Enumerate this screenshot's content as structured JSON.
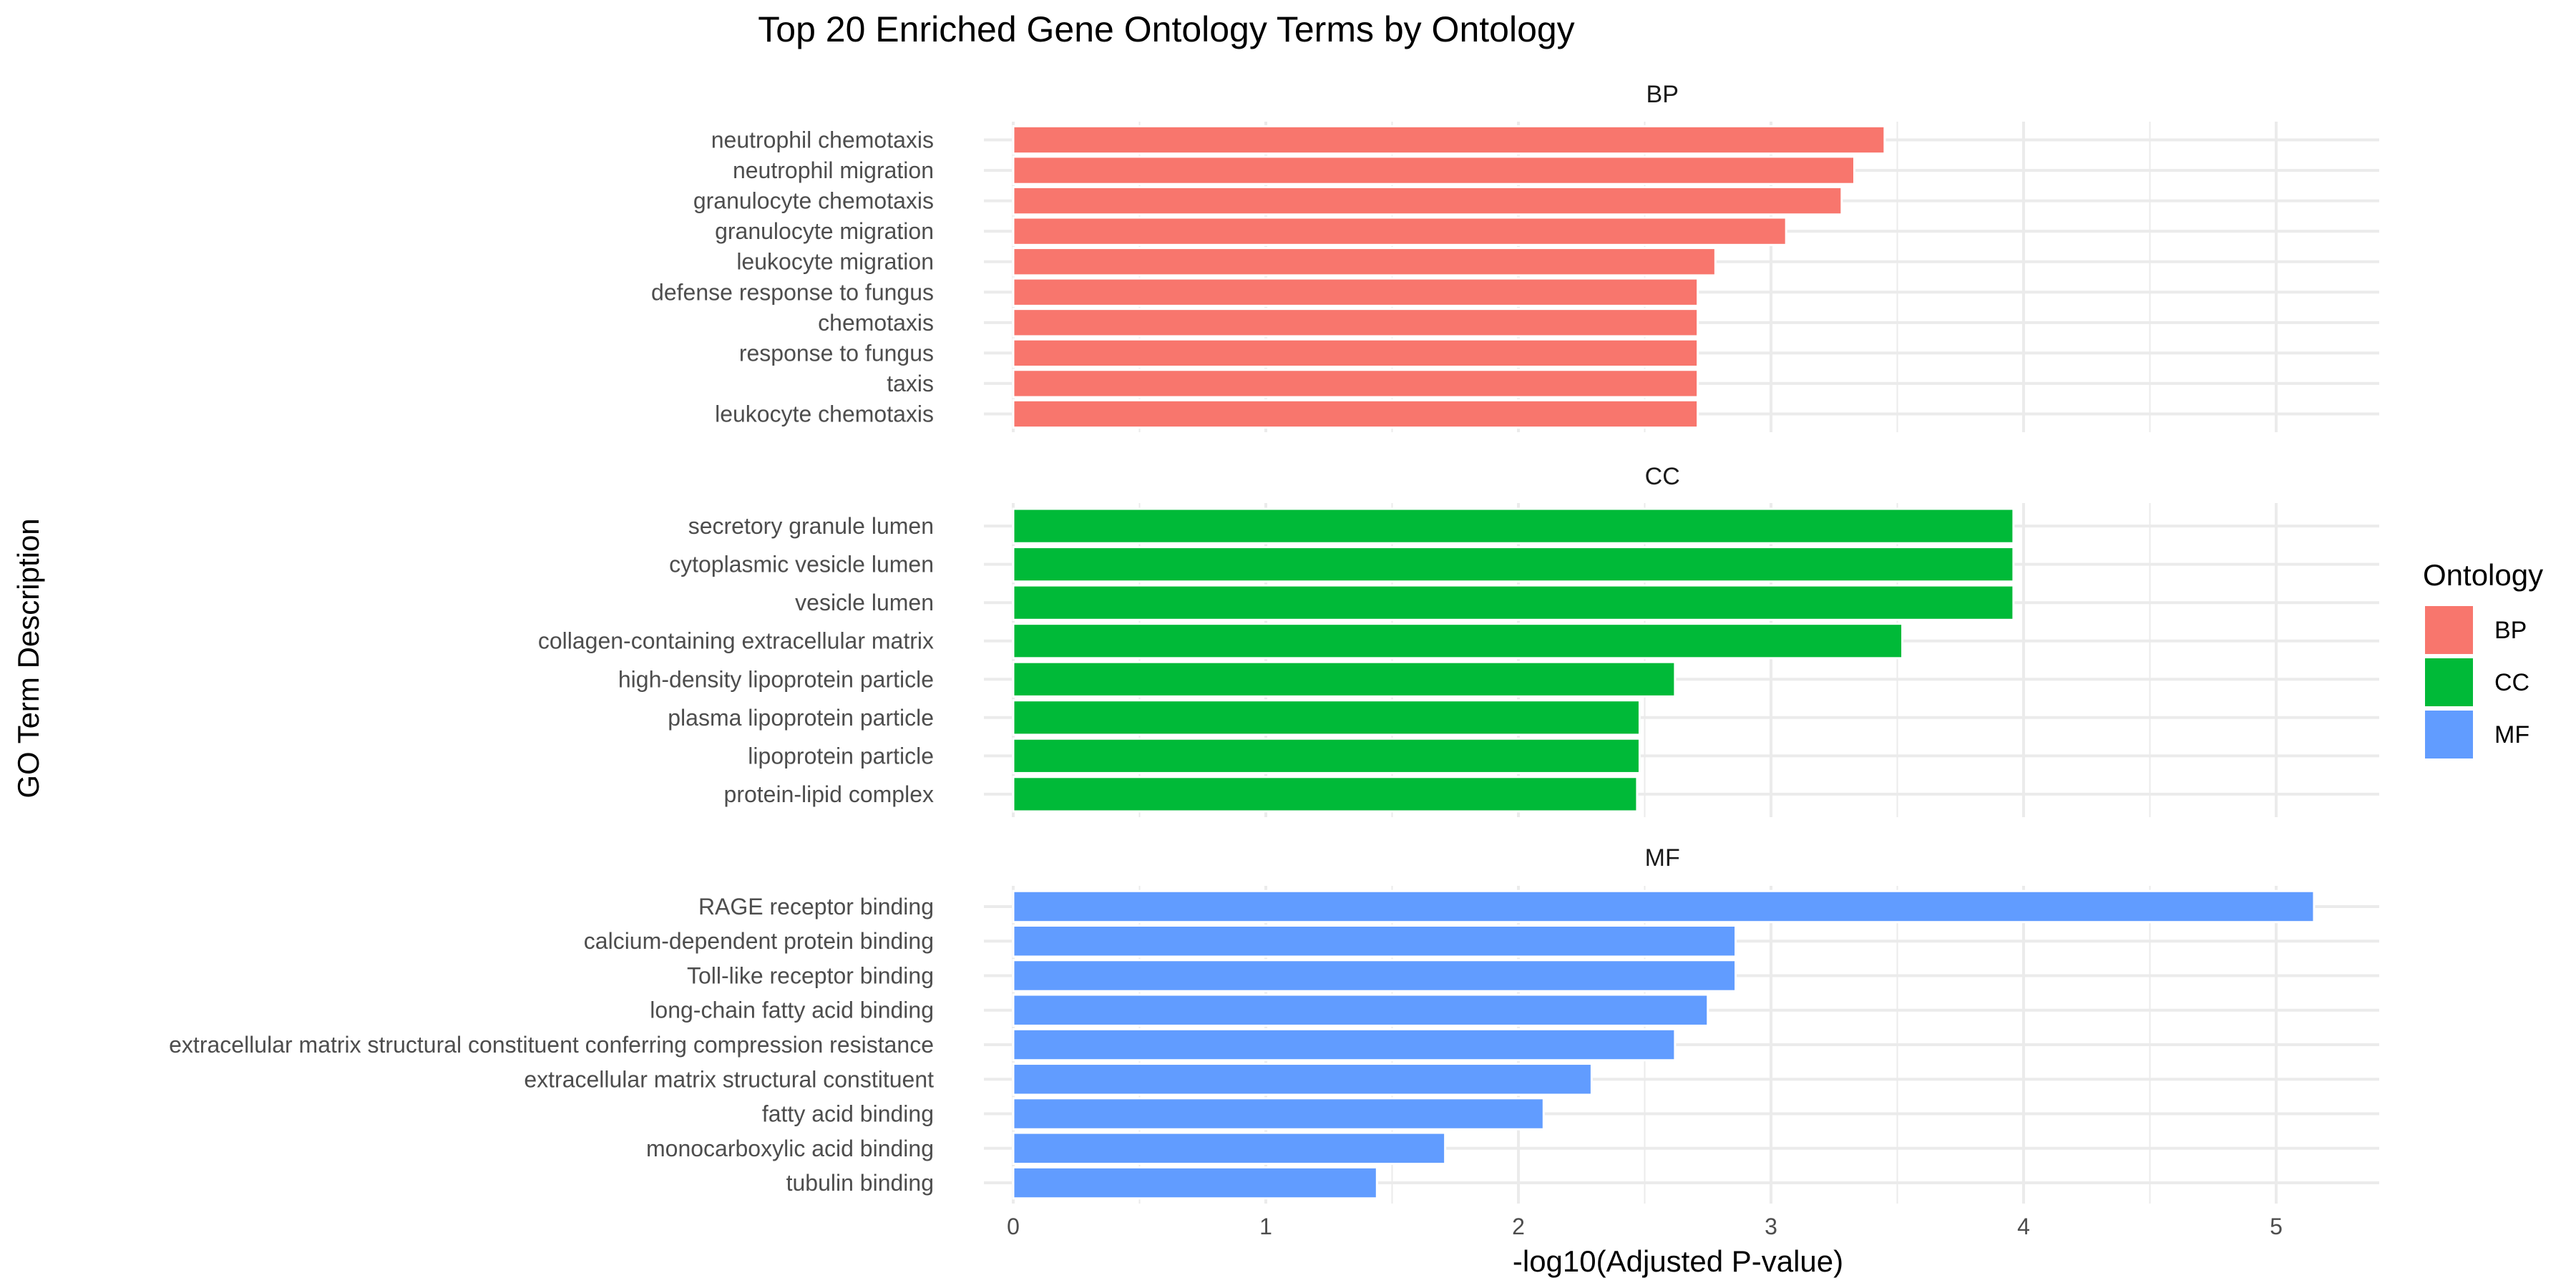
{
  "chart_data": {
    "type": "bar",
    "orientation": "horizontal",
    "title": "Top 20 Enriched Gene Ontology Terms by Ontology",
    "xlabel": "-log10(Adjusted P-value)",
    "ylabel": "GO Term Description",
    "xlim": [
      -0.2,
      5.4
    ],
    "xticks": [
      "0",
      "1",
      "2",
      "3",
      "4",
      "5"
    ],
    "grid": true,
    "legend": {
      "title": "Ontology",
      "placement": "right",
      "items": [
        {
          "label": "BP",
          "color": "#F8766D"
        },
        {
          "label": "CC",
          "color": "#00BA38"
        },
        {
          "label": "MF",
          "color": "#619CFF"
        }
      ]
    },
    "panels": [
      {
        "name": "BP",
        "color": "#F8766D",
        "categories": [
          "neutrophil chemotaxis",
          "neutrophil migration",
          "granulocyte chemotaxis",
          "granulocyte migration",
          "leukocyte migration",
          "defense response to fungus",
          "chemotaxis",
          "response to fungus",
          "taxis",
          "leukocyte chemotaxis"
        ],
        "values": [
          3.45,
          3.33,
          3.28,
          3.06,
          2.78,
          2.71,
          2.71,
          2.71,
          2.71,
          2.71
        ]
      },
      {
        "name": "CC",
        "color": "#00BA38",
        "categories": [
          "secretory granule lumen",
          "cytoplasmic vesicle lumen",
          "vesicle lumen",
          "collagen-containing extracellular matrix",
          "high-density lipoprotein particle",
          "plasma lipoprotein particle",
          "lipoprotein particle",
          "protein-lipid complex"
        ],
        "values": [
          3.96,
          3.96,
          3.96,
          3.52,
          2.62,
          2.48,
          2.48,
          2.47
        ]
      },
      {
        "name": "MF",
        "color": "#619CFF",
        "categories": [
          "RAGE receptor binding",
          "calcium-dependent protein binding",
          "Toll-like receptor binding",
          "long-chain fatty acid binding",
          "extracellular matrix structural constituent conferring compression resistance",
          "extracellular matrix structural constituent",
          "fatty acid binding",
          "monocarboxylic acid binding",
          "tubulin binding"
        ],
        "values": [
          5.15,
          2.86,
          2.86,
          2.75,
          2.62,
          2.29,
          2.1,
          1.71,
          1.44
        ]
      }
    ]
  }
}
